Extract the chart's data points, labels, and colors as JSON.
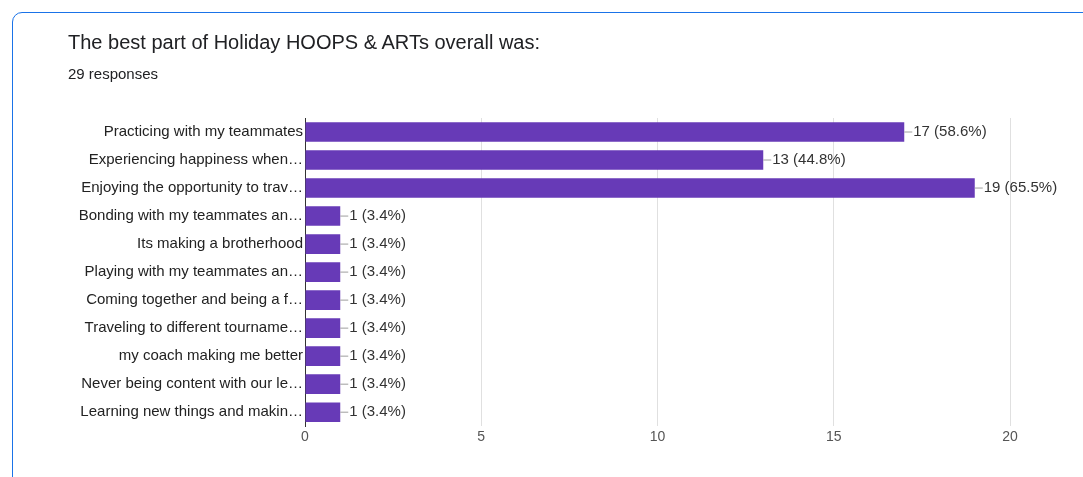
{
  "chart_data": {
    "type": "bar",
    "orientation": "horizontal",
    "title": "The best part of Holiday HOOPS & ARTs overall was:",
    "subtitle": "29 responses",
    "categories": [
      "Practicing with my teammates",
      "Experiencing happiness when…",
      "Enjoying the opportunity to trav…",
      "Bonding with my teammates an…",
      "Its making a brotherhood",
      "Playing with my teammates an…",
      "Coming together and being a f…",
      "Traveling to different tourname…",
      "my coach making me better",
      "Never being content with our le…",
      "Learning new things and makin…"
    ],
    "values": [
      17,
      13,
      19,
      1,
      1,
      1,
      1,
      1,
      1,
      1,
      1
    ],
    "value_labels": [
      "17 (58.6%)",
      "13 (44.8%)",
      "19 (65.5%)",
      "1 (3.4%)",
      "1 (3.4%)",
      "1 (3.4%)",
      "1 (3.4%)",
      "1 (3.4%)",
      "1 (3.4%)",
      "1 (3.4%)",
      "1 (3.4%)"
    ],
    "color": "#673ab7",
    "xlim": [
      0,
      20
    ],
    "xticks": [
      0,
      5,
      10,
      15,
      20
    ],
    "grid": "x",
    "legend": false
  }
}
